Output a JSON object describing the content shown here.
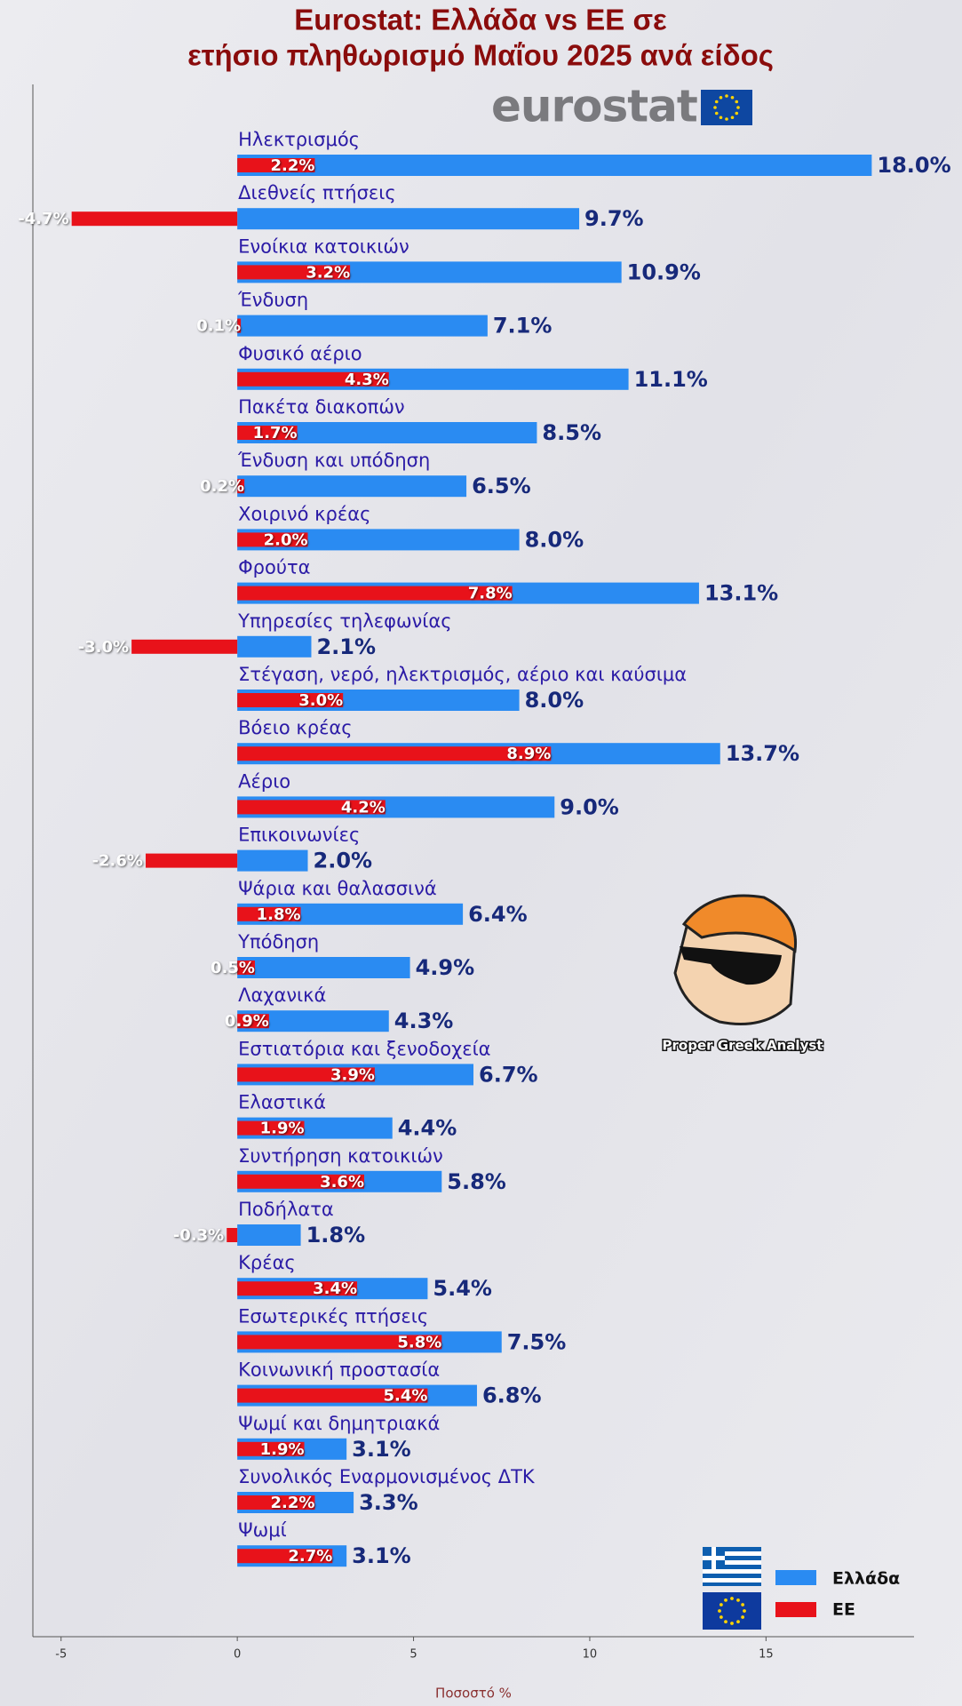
{
  "chart_data": {
    "type": "bar",
    "orientation": "horizontal",
    "title": [
      "Eurostat: Ελλάδα vs ΕΕ σε",
      "ετήσιο πληθωρισμό Μαΐου 2025 ανά είδος"
    ],
    "xlabel": "Ποσοστό %",
    "categories": [
      "Ηλεκτρισμός",
      "Διεθνείς πτήσεις",
      "Ενοίκια κατοικιών",
      "Ένδυση",
      "Φυσικό αέριο",
      "Πακέτα διακοπών",
      "Ένδυση και υπόδηση",
      "Χοιρινό κρέας",
      "Φρούτα",
      "Υπηρεσίες τηλεφωνίας",
      "Στέγαση, νερό, ηλεκτρισμός, αέριο και καύσιμα",
      "Βόειο κρέας",
      "Αέριο",
      "Επικοινωνίες",
      "Ψάρια και θαλασσινά",
      "Υπόδηση",
      "Λαχανικά",
      "Εστιατόρια και ξενοδοχεία",
      "Ελαστικά",
      "Συντήρηση κατοικιών",
      "Ποδήλατα",
      "Κρέας",
      "Εσωτερικές πτήσεις",
      "Κοινωνική προστασία",
      "Ψωμί και δημητριακά",
      "Συνολικός Εναρμονισμένος ΔΤΚ",
      "Ψωμί"
    ],
    "series": [
      {
        "name": "Ελλάδα",
        "color": "#2a8bf2",
        "values": [
          18.0,
          9.7,
          10.9,
          7.1,
          11.1,
          8.5,
          6.5,
          8.0,
          13.1,
          2.1,
          8.0,
          13.7,
          9.0,
          2.0,
          6.4,
          4.9,
          4.3,
          6.7,
          4.4,
          5.8,
          1.8,
          5.4,
          7.5,
          6.8,
          3.1,
          3.3,
          3.1
        ],
        "value_labels": [
          "18.0%",
          "9.7%",
          "10.9%",
          "7.1%",
          "11.1%",
          "8.5%",
          "6.5%",
          "8.0%",
          "13.1%",
          "2.1%",
          "8.0%",
          "13.7%",
          "9.0%",
          "2.0%",
          "6.4%",
          "4.9%",
          "4.3%",
          "6.7%",
          "4.4%",
          "5.8%",
          "1.8%",
          "5.4%",
          "7.5%",
          "6.8%",
          "3.1%",
          "3.3%",
          "3.1%"
        ]
      },
      {
        "name": "ΕΕ",
        "color": "#e8121a",
        "values": [
          2.2,
          -4.7,
          3.2,
          0.1,
          4.3,
          1.7,
          0.2,
          2.0,
          7.8,
          -3.0,
          3.0,
          8.9,
          4.2,
          -2.6,
          1.8,
          0.5,
          0.9,
          3.9,
          1.9,
          3.6,
          -0.3,
          3.4,
          5.8,
          5.4,
          1.9,
          2.2,
          2.7
        ],
        "value_labels": [
          "2.2%",
          "-4.7%",
          "3.2%",
          "0.1%",
          "4.3%",
          "1.7%",
          "0.2%",
          "2.0%",
          "7.8%",
          "-3.0%",
          "3.0%",
          "8.9%",
          "4.2%",
          "-2.6%",
          "1.8%",
          "0.5%",
          "0.9%",
          "3.9%",
          "1.9%",
          "3.6%",
          "-0.3%",
          "3.4%",
          "5.8%",
          "5.4%",
          "1.9%",
          "2.2%",
          "2.7%"
        ]
      }
    ],
    "xlim": [
      -5.8,
      19.2
    ],
    "xticks": [
      -5,
      0,
      5,
      10,
      15
    ],
    "grid": false,
    "legend": "lower right"
  },
  "logo": {
    "text": "eurostat"
  },
  "watermark": {
    "text": "Proper Greek Analyst"
  }
}
